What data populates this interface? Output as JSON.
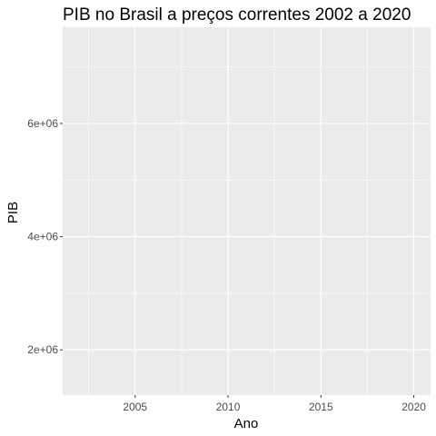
{
  "chart_data": {
    "type": "line",
    "title": "PIB no Brasil a preços correntes 2002 a 2020",
    "xlabel": "Ano",
    "ylabel": "PIB",
    "xlim": [
      2001.1,
      2020.9
    ],
    "ylim": [
      1200000,
      7700000
    ],
    "x_ticks": [
      2005,
      2010,
      2015,
      2020
    ],
    "x_tick_labels": [
      "2005",
      "2010",
      "2015",
      "2020"
    ],
    "x_minor_ticks": [
      2002.5,
      2007.5,
      2012.5,
      2017.5
    ],
    "y_ticks": [
      2000000,
      4000000,
      6000000
    ],
    "y_tick_labels": [
      "2e+06",
      "4e+06",
      "6e+06"
    ],
    "y_minor_ticks": [
      3000000,
      5000000,
      7000000
    ],
    "grid": true,
    "series": [],
    "colors": {
      "panel": "#ebebeb",
      "grid": "#ffffff",
      "tick_label": "#4d4d4d",
      "tick_mark": "#333333"
    }
  }
}
